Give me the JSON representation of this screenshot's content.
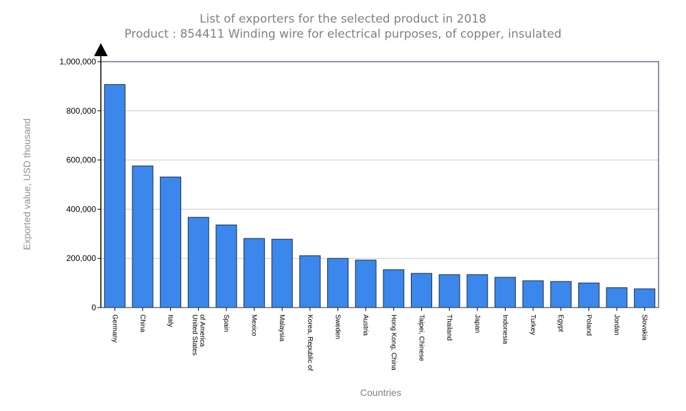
{
  "chart_data": {
    "type": "bar",
    "title": "List of exporters for the selected product in 2018",
    "subtitle": "Product : 854411 Winding wire for electrical purposes, of copper, insulated",
    "xlabel": "Countries",
    "ylabel": "Exported value, USD thousand",
    "ylim": [
      0,
      1000000
    ],
    "yticks": [
      0,
      200000,
      400000,
      600000,
      800000,
      1000000
    ],
    "ytick_labels": [
      "0",
      "200,000",
      "400,000",
      "600,000",
      "800,000",
      "1,000,000"
    ],
    "grid": true,
    "bar_color": "#3b87ec",
    "categories": [
      "Germany",
      "China",
      "Italy",
      "United States\nof America",
      "Spain",
      "Mexico",
      "Malaysia",
      "Korea, Republic of",
      "Sweden",
      "Austria",
      "Hong Kong, China",
      "Taipei, Chinese",
      "Thailand",
      "Japan",
      "Indonesia",
      "Turkey",
      "Egypt",
      "Poland",
      "Jordan",
      "Slovakia"
    ],
    "values": [
      907000,
      576000,
      531000,
      367000,
      336000,
      281000,
      278000,
      211000,
      200000,
      193000,
      154000,
      139000,
      134000,
      134000,
      123000,
      109000,
      106000,
      100000,
      81000,
      76000
    ]
  }
}
